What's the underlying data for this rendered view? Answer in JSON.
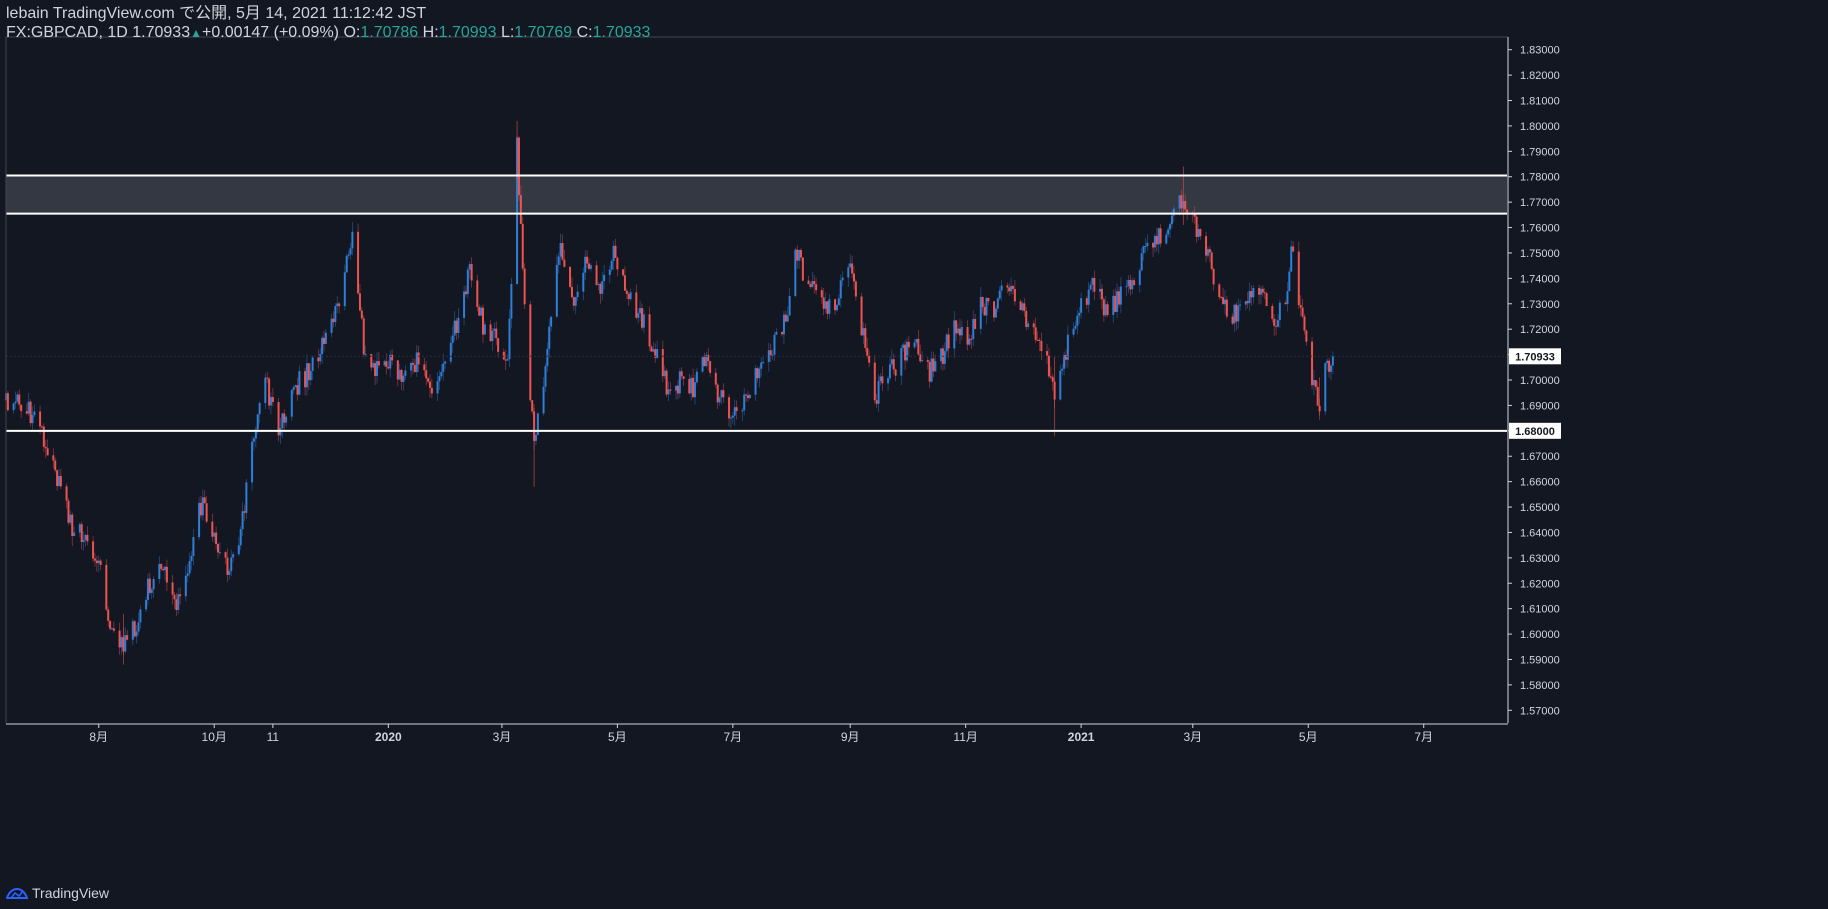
{
  "header": {
    "line1": "lebain TradingView.com で公開, 5月 14, 2021 11:12:42 JST",
    "symbol": "FX:GBPCAD, 1D",
    "price": "1.70933",
    "change": "+0.00147 (+0.09%)",
    "o_label": "O:",
    "o_val": "1.70786",
    "h_label": "H:",
    "h_val": "1.70993",
    "l_label": "L:",
    "l_val": "1.70769",
    "c_label": "C:",
    "c_val": "1.70933"
  },
  "footer": {
    "brand": "TradingView",
    "icon": "tradingview-logo-icon"
  },
  "colors": {
    "up": "#2f7ed8",
    "down": "#ef5350",
    "background": "#131722",
    "grid": "#2a2e39",
    "text": "#d1d4dc",
    "teal": "#26a69a"
  },
  "chart_data": {
    "type": "candlestick",
    "title": "FX:GBPCAD, 1D",
    "ylim": [
      1.565,
      1.835
    ],
    "y_ticks": [
      "1.83000",
      "1.82000",
      "1.81000",
      "1.80000",
      "1.79000",
      "1.78000",
      "1.77000",
      "1.76000",
      "1.75000",
      "1.74000",
      "1.73000",
      "1.72000",
      "1.71000",
      "1.70000",
      "1.69000",
      "1.68000",
      "1.67000",
      "1.66000",
      "1.65000",
      "1.64000",
      "1.63000",
      "1.62000",
      "1.61000",
      "1.60000",
      "1.59000",
      "1.58000",
      "1.57000"
    ],
    "x_ticks": [
      "8月",
      "10月",
      "11",
      "2020",
      "3月",
      "5月",
      "7月",
      "9月",
      "11月",
      "2021",
      "3月",
      "5月",
      "7月"
    ],
    "x_tick_dates": [
      "2019-08-01",
      "2019-10-01",
      "2019-11-01",
      "2020-01-01",
      "2020-03-01",
      "2020-05-01",
      "2020-07-01",
      "2020-09-01",
      "2020-11-01",
      "2021-01-01",
      "2021-03-01",
      "2021-05-01",
      "2021-07-01"
    ],
    "x_range": [
      "2019-06-13",
      "2021-08-14"
    ],
    "bold_x_ticks": [
      "2020",
      "2021"
    ],
    "last_price_label": "1.70933",
    "last_price": 1.70933,
    "resistance_zone": [
      1.7655,
      1.7805
    ],
    "support_level": 1.68,
    "support_label": "1.68000",
    "trend_close_series": [
      [
        "2019-06-17",
        1.692
      ],
      [
        "2019-06-25",
        1.688
      ],
      [
        "2019-07-01",
        1.681
      ],
      [
        "2019-07-10",
        1.662
      ],
      [
        "2019-07-18",
        1.642
      ],
      [
        "2019-07-26",
        1.638
      ],
      [
        "2019-08-01",
        1.627
      ],
      [
        "2019-08-07",
        1.604
      ],
      [
        "2019-08-14",
        1.596
      ],
      [
        "2019-08-20",
        1.603
      ],
      [
        "2019-08-27",
        1.619
      ],
      [
        "2019-09-03",
        1.628
      ],
      [
        "2019-09-10",
        1.612
      ],
      [
        "2019-09-17",
        1.624
      ],
      [
        "2019-09-24",
        1.651
      ],
      [
        "2019-10-01",
        1.641
      ],
      [
        "2019-10-07",
        1.626
      ],
      [
        "2019-10-14",
        1.636
      ],
      [
        "2019-10-21",
        1.672
      ],
      [
        "2019-10-28",
        1.699
      ],
      [
        "2019-11-04",
        1.679
      ],
      [
        "2019-11-11",
        1.697
      ],
      [
        "2019-11-18",
        1.701
      ],
      [
        "2019-11-25",
        1.711
      ],
      [
        "2019-12-02",
        1.721
      ],
      [
        "2019-12-09",
        1.741
      ],
      [
        "2019-12-13",
        1.755
      ],
      [
        "2019-12-19",
        1.713
      ],
      [
        "2019-12-26",
        1.703
      ],
      [
        "2020-01-02",
        1.706
      ],
      [
        "2020-01-09",
        1.698
      ],
      [
        "2020-01-16",
        1.707
      ],
      [
        "2020-01-23",
        1.698
      ],
      [
        "2020-01-30",
        1.702
      ],
      [
        "2020-02-06",
        1.723
      ],
      [
        "2020-02-13",
        1.744
      ],
      [
        "2020-02-20",
        1.722
      ],
      [
        "2020-02-27",
        1.717
      ],
      [
        "2020-03-04",
        1.706
      ],
      [
        "2020-03-09",
        1.793
      ],
      [
        "2020-03-12",
        1.742
      ],
      [
        "2020-03-18",
        1.672
      ],
      [
        "2020-03-25",
        1.712
      ],
      [
        "2020-04-01",
        1.754
      ],
      [
        "2020-04-08",
        1.731
      ],
      [
        "2020-04-15",
        1.747
      ],
      [
        "2020-04-22",
        1.738
      ],
      [
        "2020-04-29",
        1.751
      ],
      [
        "2020-05-06",
        1.734
      ],
      [
        "2020-05-13",
        1.726
      ],
      [
        "2020-05-20",
        1.713
      ],
      [
        "2020-05-27",
        1.698
      ],
      [
        "2020-06-03",
        1.699
      ],
      [
        "2020-06-10",
        1.697
      ],
      [
        "2020-06-17",
        1.708
      ],
      [
        "2020-06-24",
        1.693
      ],
      [
        "2020-07-01",
        1.685
      ],
      [
        "2020-07-08",
        1.694
      ],
      [
        "2020-07-15",
        1.703
      ],
      [
        "2020-07-22",
        1.712
      ],
      [
        "2020-07-29",
        1.724
      ],
      [
        "2020-08-03",
        1.751
      ],
      [
        "2020-08-10",
        1.738
      ],
      [
        "2020-08-17",
        1.731
      ],
      [
        "2020-08-24",
        1.729
      ],
      [
        "2020-08-31",
        1.746
      ],
      [
        "2020-09-07",
        1.722
      ],
      [
        "2020-09-14",
        1.694
      ],
      [
        "2020-09-21",
        1.702
      ],
      [
        "2020-09-28",
        1.709
      ],
      [
        "2020-10-05",
        1.714
      ],
      [
        "2020-10-12",
        1.703
      ],
      [
        "2020-10-19",
        1.708
      ],
      [
        "2020-10-26",
        1.721
      ],
      [
        "2020-11-02",
        1.713
      ],
      [
        "2020-11-09",
        1.731
      ],
      [
        "2020-11-16",
        1.727
      ],
      [
        "2020-11-23",
        1.737
      ],
      [
        "2020-11-30",
        1.729
      ],
      [
        "2020-12-07",
        1.717
      ],
      [
        "2020-12-14",
        1.707
      ],
      [
        "2020-12-18",
        1.694
      ],
      [
        "2020-12-24",
        1.712
      ],
      [
        "2021-01-01",
        1.731
      ],
      [
        "2021-01-08",
        1.737
      ],
      [
        "2021-01-15",
        1.726
      ],
      [
        "2021-01-22",
        1.733
      ],
      [
        "2021-01-29",
        1.741
      ],
      [
        "2021-02-05",
        1.755
      ],
      [
        "2021-02-12",
        1.756
      ],
      [
        "2021-02-19",
        1.766
      ],
      [
        "2021-02-24",
        1.773
      ],
      [
        "2021-03-01",
        1.763
      ],
      [
        "2021-03-08",
        1.751
      ],
      [
        "2021-03-15",
        1.734
      ],
      [
        "2021-03-22",
        1.726
      ],
      [
        "2021-03-29",
        1.731
      ],
      [
        "2021-04-05",
        1.735
      ],
      [
        "2021-04-12",
        1.724
      ],
      [
        "2021-04-19",
        1.728
      ],
      [
        "2021-04-22",
        1.754
      ],
      [
        "2021-04-28",
        1.721
      ],
      [
        "2021-05-04",
        1.697
      ],
      [
        "2021-05-07",
        1.689
      ],
      [
        "2021-05-10",
        1.704
      ],
      [
        "2021-05-14",
        1.7093
      ]
    ],
    "wick_spikes": [
      [
        "2020-03-09",
        1.802,
        1.779
      ],
      [
        "2020-03-18",
        1.689,
        1.658
      ],
      [
        "2021-02-24",
        1.784,
        1.761
      ],
      [
        "2019-08-14",
        1.608,
        1.588
      ],
      [
        "2020-12-18",
        1.709,
        1.678
      ],
      [
        "2021-05-07",
        1.701,
        1.686
      ]
    ]
  }
}
